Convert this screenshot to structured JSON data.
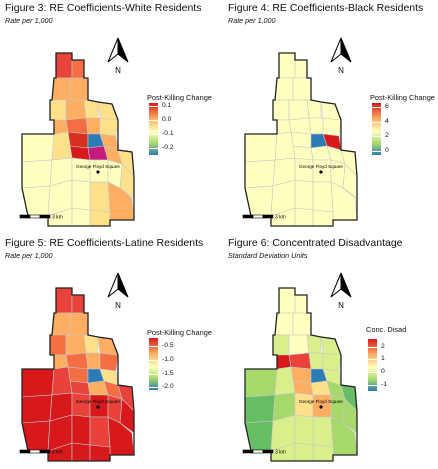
{
  "figures": [
    {
      "title": "Figure 3: RE Coefficients-White Residents",
      "subtitle": "Rate per 1,000",
      "legend_title": "Post-Killing Change",
      "ticks": [
        "0.1",
        "0.0",
        "-0.1",
        "-0.2"
      ],
      "tick_values": [
        0.1,
        0.0,
        -0.1,
        -0.2
      ],
      "range": [
        -0.25,
        0.12
      ],
      "scale_label": "3 km",
      "north_label": "N",
      "place_label": "George Floyd Square"
    },
    {
      "title": "Figure 4: RE Coefficients-Black Residents",
      "subtitle": "Rate per 1,000",
      "legend_title": "Post-Killing Change",
      "ticks": [
        "6",
        "4",
        "2",
        "0"
      ],
      "tick_values": [
        6,
        4,
        2,
        0
      ],
      "range": [
        -0.5,
        6.5
      ],
      "scale_label": "3 km",
      "north_label": "N",
      "place_label": "George Floyd Square"
    },
    {
      "title": "Figure 5: RE Coefficients-Latine Residents",
      "subtitle": "Rate per 1,000",
      "legend_title": "Post-Killing Change",
      "ticks": [
        "-0.5",
        "-1.0",
        "-1.5",
        "-2.0"
      ],
      "tick_values": [
        -0.5,
        -1.0,
        -1.5,
        -2.0
      ],
      "range": [
        -2.1,
        -0.2
      ],
      "scale_label": "3 km",
      "north_label": "N",
      "place_label": "George Floyd Square"
    },
    {
      "title": "Figure 6: Concentrated Disadvantage",
      "subtitle": "Standard Deviation Units",
      "legend_title": "Conc. Disad",
      "ticks": [
        "2",
        "1",
        "0",
        "-1"
      ],
      "tick_values": [
        2,
        1,
        0,
        -1
      ],
      "range": [
        -1.5,
        2.6
      ],
      "scale_label": "3 km",
      "north_label": "N",
      "place_label": "George Floyd Square"
    }
  ],
  "palette": {
    "high": "#d7191c",
    "mid_high": "#fdae61",
    "mid": "#ffffbf",
    "mid_low": "#a6d96a",
    "low": "#2c7bb6"
  }
}
